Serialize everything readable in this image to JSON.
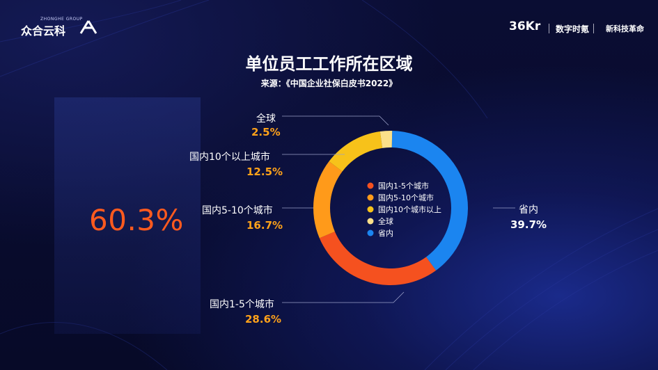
{
  "header": {
    "logo_left_main": "众合云科",
    "logo_left_sub": "ZHONGHE GROUP",
    "logo_right_1": "36Kr",
    "logo_right_2": "数字时氪",
    "logo_right_3": "新科技革命"
  },
  "title": "单位员工工作所在区域",
  "source": "来源：《中国企业社保白皮书2022》",
  "highlight": "60.3%",
  "colors": {
    "c1": "#f5511f",
    "c2": "#ff9a1a",
    "c3": "#f7c21a",
    "c4": "#fbe08a",
    "c5": "#1b85f0"
  },
  "chart_data": {
    "type": "pie",
    "donut": true,
    "series": [
      {
        "name": "省内",
        "value": 39.7,
        "label": "39.7%"
      },
      {
        "name": "国内1-5个城市",
        "value": 28.6,
        "label": "28.6%"
      },
      {
        "name": "国内5-10个城市",
        "value": 16.7,
        "label": "16.7%"
      },
      {
        "name": "国内10个以上城市",
        "value": 12.5,
        "label": "12.5%"
      },
      {
        "name": "全球",
        "value": 2.5,
        "label": "2.5%"
      }
    ],
    "legend": [
      "国内1-5个城市",
      "国内5-10个城市",
      "国内10个城市以上",
      "全球",
      "省内"
    ],
    "legend_placement": "center"
  }
}
